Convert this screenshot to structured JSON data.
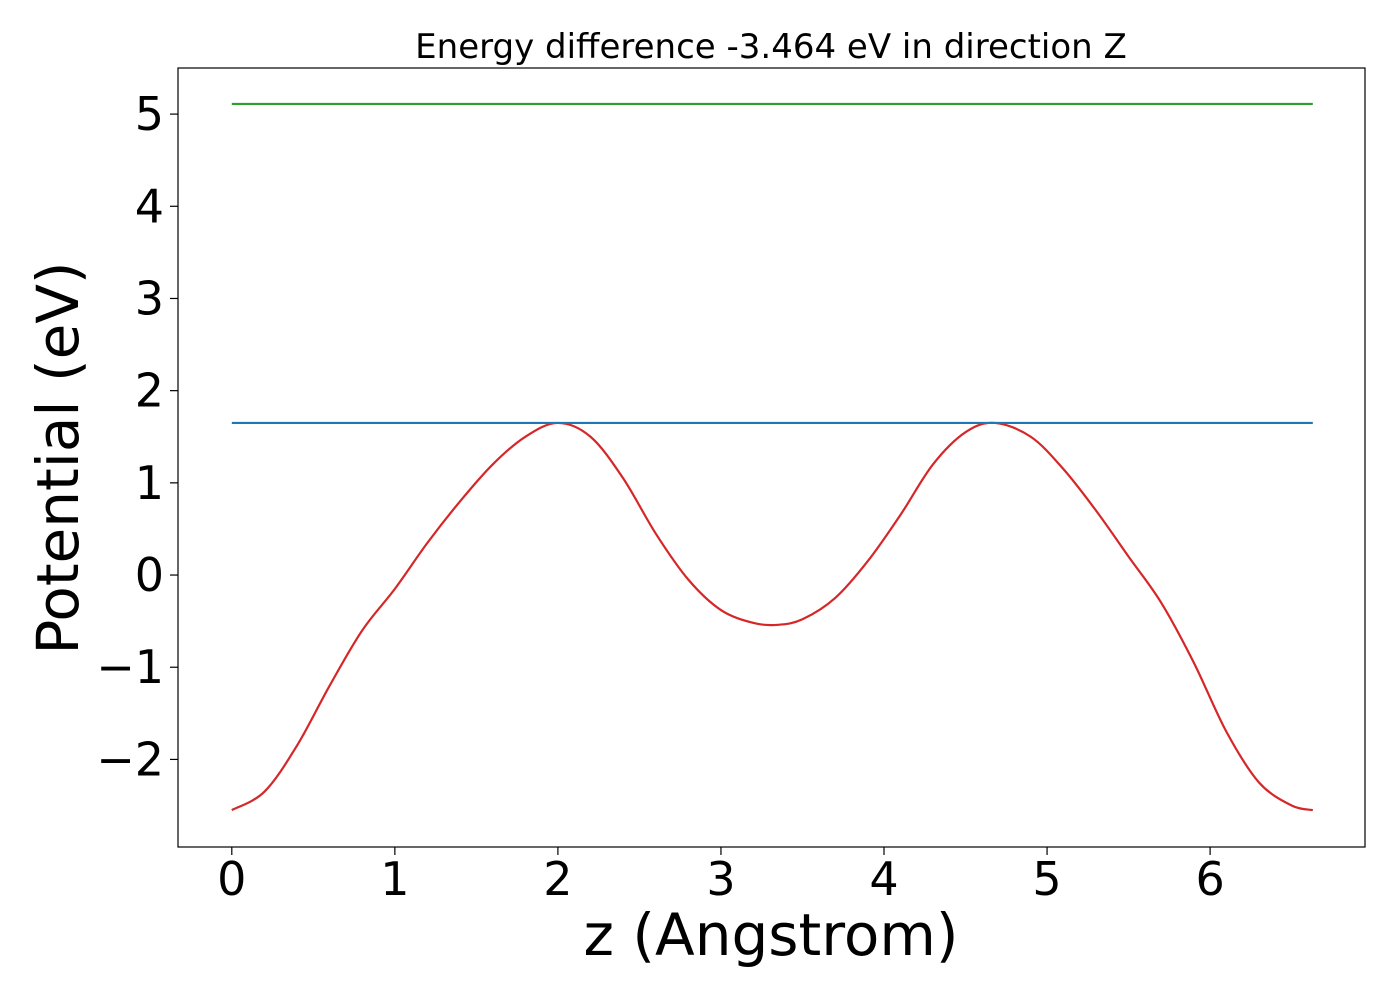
{
  "chart_data": {
    "type": "line",
    "title": "Energy difference -3.464 eV in direction Z",
    "xlabel": "z (Angstrom)",
    "ylabel": "Potential (eV)",
    "xlim": [
      -0.33,
      6.95
    ],
    "ylim": [
      -2.95,
      5.5
    ],
    "xticks": [
      0,
      1,
      2,
      3,
      4,
      5,
      6
    ],
    "xtick_labels": [
      "0",
      "1",
      "2",
      "3",
      "4",
      "5",
      "6"
    ],
    "yticks": [
      -2,
      -1,
      0,
      1,
      2,
      3,
      4,
      5
    ],
    "ytick_labels": [
      "−2",
      "−1",
      "0",
      "1",
      "2",
      "3",
      "4",
      "5"
    ],
    "grid": false,
    "series": [
      {
        "color": "#d62728",
        "x": [
          0,
          0.2,
          0.4,
          0.6,
          0.8,
          1.0,
          1.2,
          1.4,
          1.6,
          1.8,
          2.0,
          2.2,
          2.4,
          2.6,
          2.8,
          3.0,
          3.2,
          3.35,
          3.5,
          3.7,
          3.9,
          4.1,
          4.3,
          4.5,
          4.68,
          4.9,
          5.1,
          5.3,
          5.5,
          5.7,
          5.9,
          6.1,
          6.3,
          6.5,
          6.63
        ],
        "y": [
          -2.55,
          -2.35,
          -1.85,
          -1.2,
          -0.6,
          -0.15,
          0.35,
          0.8,
          1.2,
          1.5,
          1.65,
          1.5,
          1.05,
          0.45,
          -0.05,
          -0.38,
          -0.52,
          -0.54,
          -0.48,
          -0.25,
          0.15,
          0.65,
          1.2,
          1.55,
          1.65,
          1.5,
          1.15,
          0.7,
          0.2,
          -0.3,
          -0.95,
          -1.7,
          -2.25,
          -2.5,
          -2.55
        ]
      },
      {
        "color": "#1f77b4",
        "x": [
          0,
          6.63
        ],
        "y": [
          1.65,
          1.65
        ]
      },
      {
        "color": "#2ca02c",
        "x": [
          0,
          6.63
        ],
        "y": [
          5.11,
          5.11
        ]
      }
    ]
  }
}
